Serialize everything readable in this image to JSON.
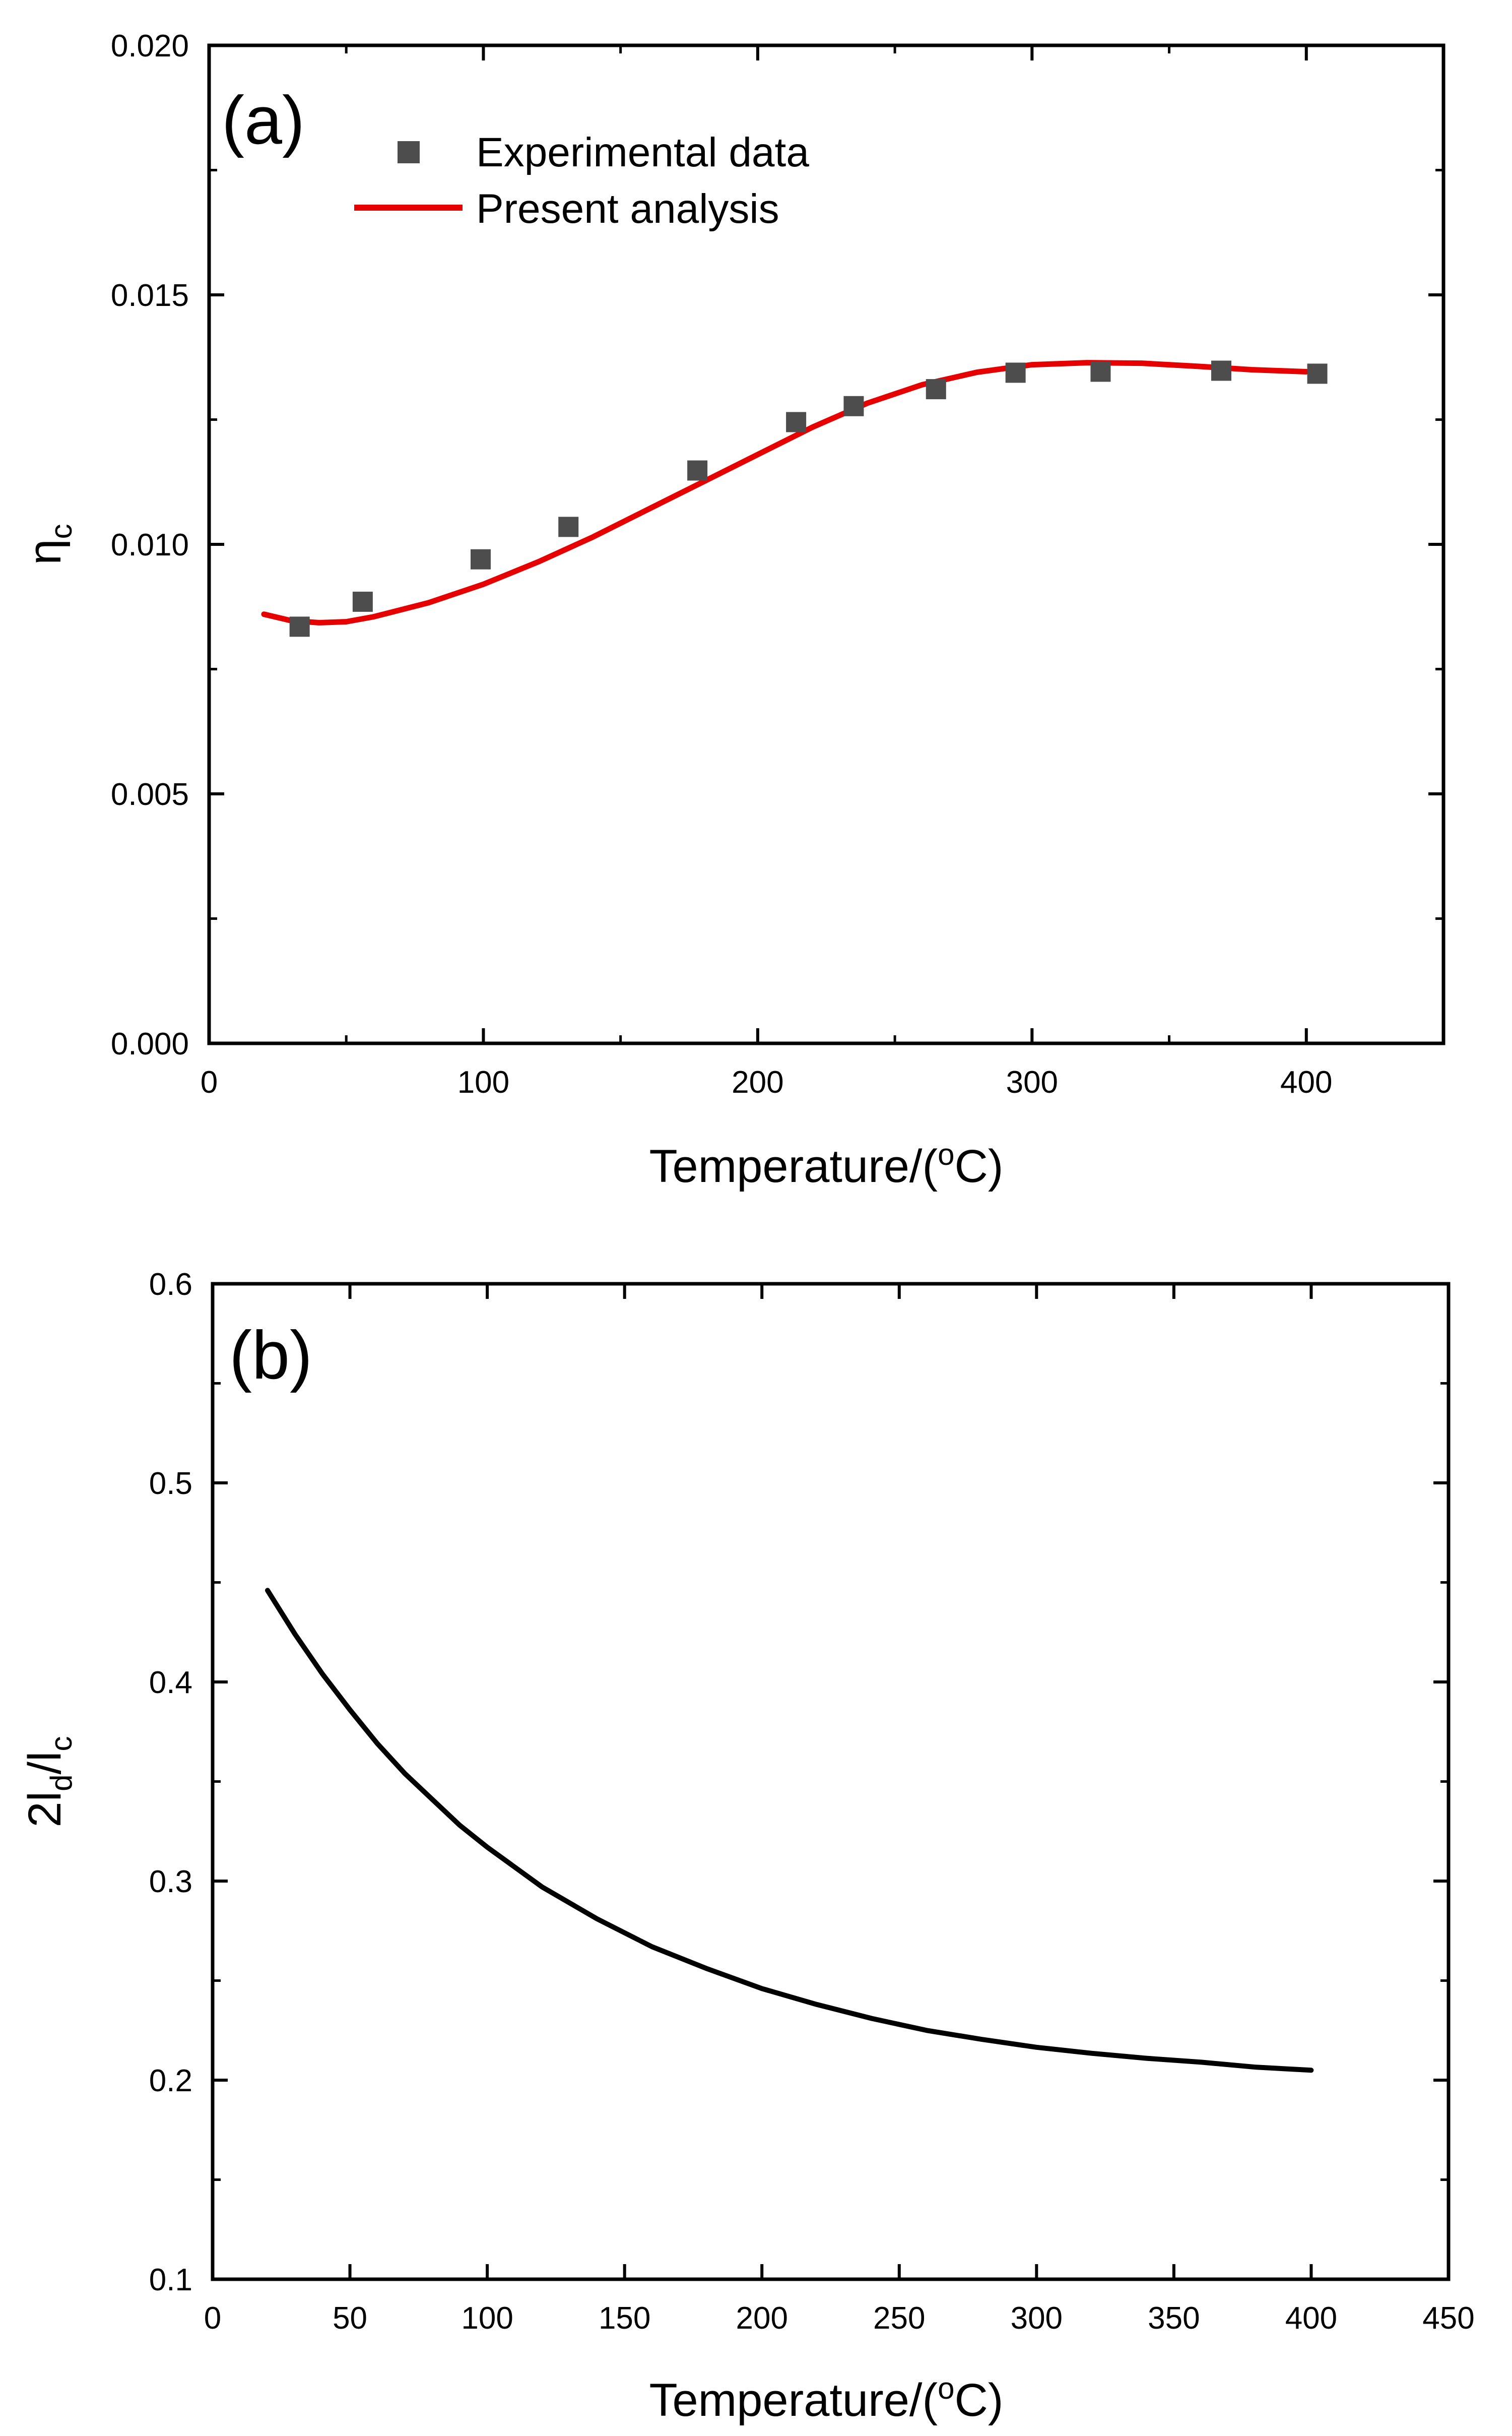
{
  "chart_data": [
    {
      "panel": "(a)",
      "type": "scatter+line",
      "xlabel": {
        "main": "Temperature/(",
        "sup": "o",
        "tail": "C)"
      },
      "ylabel": {
        "main": "η",
        "sub": "c"
      },
      "xlim": [
        0,
        450
      ],
      "ylim": [
        0.0,
        0.02
      ],
      "x_ticks": [
        0,
        100,
        200,
        300,
        400
      ],
      "x_tick_labels": [
        "0",
        "100",
        "200",
        "300",
        "400"
      ],
      "y_ticks": [
        0.0,
        0.005,
        0.01,
        0.015,
        0.02
      ],
      "y_tick_labels": [
        "0.000",
        "0.005",
        "0.010",
        "0.015",
        "0.020"
      ],
      "legend_position": "top-left",
      "series": [
        {
          "name": "Experimental data",
          "kind": "scatter",
          "marker": "square",
          "color": "#4d4d4d",
          "x": [
            33,
            56,
            99,
            131,
            178,
            214,
            235,
            265,
            294,
            325,
            369,
            404
          ],
          "y": [
            0.00835,
            0.00885,
            0.0097,
            0.01035,
            0.01148,
            0.01245,
            0.01277,
            0.01311,
            0.01344,
            0.01346,
            0.01348,
            0.01342
          ]
        },
        {
          "name": "Present analysis",
          "kind": "line",
          "color": "#e60000",
          "x": [
            20,
            30,
            40,
            50,
            60,
            80,
            100,
            120,
            140,
            160,
            180,
            200,
            220,
            240,
            260,
            280,
            300,
            320,
            340,
            360,
            380,
            400
          ],
          "y": [
            0.0086,
            0.00847,
            0.00843,
            0.00845,
            0.00855,
            0.00883,
            0.0092,
            0.00965,
            0.01015,
            0.0107,
            0.01125,
            0.0118,
            0.01235,
            0.01283,
            0.0132,
            0.01345,
            0.0136,
            0.01364,
            0.01363,
            0.01357,
            0.0135,
            0.01346
          ]
        }
      ]
    },
    {
      "panel": "(b)",
      "type": "line",
      "xlabel": {
        "main": "Temperature/(",
        "sup": "o",
        "tail": "C)"
      },
      "ylabel": {
        "main": "2l",
        "sub1": "d",
        "mid": "/l",
        "sub2": "c"
      },
      "xlim": [
        0,
        450
      ],
      "ylim": [
        0.1,
        0.6
      ],
      "x_ticks": [
        0,
        50,
        100,
        150,
        200,
        250,
        300,
        350,
        400,
        450
      ],
      "x_tick_labels": [
        "0",
        "50",
        "100",
        "150",
        "200",
        "250",
        "300",
        "350",
        "400",
        "450"
      ],
      "y_ticks": [
        0.1,
        0.2,
        0.3,
        0.4,
        0.5,
        0.6
      ],
      "y_tick_labels": [
        "0.1",
        "0.2",
        "0.3",
        "0.4",
        "0.5",
        "0.6"
      ],
      "series": [
        {
          "name": "2ld/lc",
          "kind": "line",
          "color": "#000000",
          "x": [
            20,
            30,
            40,
            50,
            60,
            70,
            80,
            90,
            100,
            120,
            140,
            160,
            180,
            200,
            220,
            240,
            260,
            280,
            300,
            320,
            340,
            360,
            380,
            400
          ],
          "y": [
            0.446,
            0.424,
            0.404,
            0.386,
            0.369,
            0.354,
            0.341,
            0.328,
            0.317,
            0.297,
            0.281,
            0.267,
            0.256,
            0.246,
            0.238,
            0.231,
            0.225,
            0.2205,
            0.2165,
            0.2135,
            0.211,
            0.209,
            0.2065,
            0.205
          ]
        }
      ]
    }
  ]
}
